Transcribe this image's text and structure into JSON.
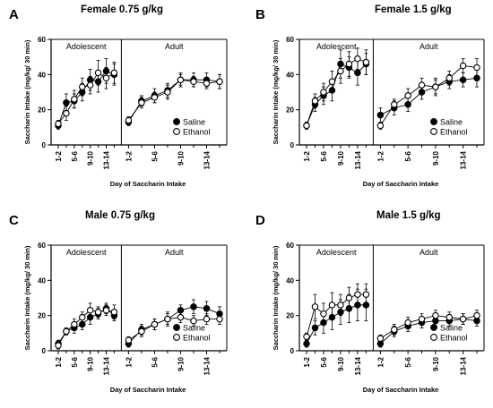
{
  "figure": {
    "xlabel": "Day of Saccharin Intake",
    "ylabel": "Saccharin Intake (mg/kg/ 30 min)",
    "phase_labels": [
      "Adolescent",
      "Adult"
    ],
    "x_tick_labels": [
      "1-2",
      "5-6",
      "9-10",
      "13-14"
    ],
    "y_tick_labels": [
      "0",
      "20",
      "40",
      "60"
    ]
  },
  "chart_data": [
    {
      "type": "line",
      "panel": "A",
      "title": "Female 0.75 g/kg",
      "xlabel": "Day of Saccharin Intake",
      "ylabel": "Saccharin Intake (mg/kg/ 30 min)",
      "ylim": [
        0,
        60
      ],
      "legend_position": "bottom-right",
      "phases": [
        "Adolescent",
        "Adult"
      ],
      "series": [
        {
          "name": "Saline",
          "marker": "filled",
          "adolescent": [
            11,
            24,
            25,
            30,
            37,
            36,
            42,
            40
          ],
          "adolescent_err": [
            2,
            5,
            4,
            5,
            6,
            6,
            7,
            6
          ],
          "adult": [
            13,
            25,
            28,
            31,
            37,
            37,
            37,
            36
          ],
          "adult_err": [
            2,
            3,
            4,
            4,
            4,
            4,
            4,
            4
          ]
        },
        {
          "name": "Ethanol",
          "marker": "open",
          "adolescent": [
            12,
            18,
            26,
            33,
            34,
            41,
            38,
            41
          ],
          "adolescent_err": [
            2,
            4,
            5,
            5,
            5,
            7,
            6,
            6
          ],
          "adult": [
            14,
            24,
            27,
            30,
            37,
            36,
            35,
            36
          ],
          "adult_err": [
            2,
            3,
            3,
            4,
            3,
            3,
            3,
            4
          ]
        }
      ]
    },
    {
      "type": "line",
      "panel": "B",
      "title": "Female 1.5 g/kg",
      "xlabel": "Day of Saccharin Intake",
      "ylabel": "Saccharin Intake (mg/kg/ 30 min)",
      "ylim": [
        0,
        60
      ],
      "legend_position": "bottom-right",
      "phases": [
        "Adolescent",
        "Adult"
      ],
      "series": [
        {
          "name": "Saline",
          "marker": "filled",
          "adolescent": [
            11,
            23,
            28,
            31,
            46,
            44,
            41,
            46
          ],
          "adolescent_err": [
            2,
            4,
            5,
            6,
            8,
            6,
            7,
            6
          ],
          "adult": [
            17,
            21,
            23,
            30,
            33,
            36,
            37,
            38
          ],
          "adult_err": [
            4,
            4,
            4,
            4,
            4,
            4,
            4,
            5
          ]
        },
        {
          "name": "Ethanol",
          "marker": "open",
          "adolescent": [
            11,
            25,
            30,
            36,
            42,
            46,
            49,
            47
          ],
          "adolescent_err": [
            2,
            4,
            5,
            6,
            7,
            7,
            6,
            7
          ],
          "adult": [
            11,
            23,
            28,
            34,
            33,
            38,
            45,
            44
          ],
          "adult_err": [
            2,
            3,
            4,
            4,
            5,
            4,
            4,
            5
          ]
        }
      ]
    },
    {
      "type": "line",
      "panel": "C",
      "title": "Male 0.75 g/kg",
      "xlabel": "Day of Saccharin Intake",
      "ylabel": "Saccharin Intake (mg/kg/ 30 min)",
      "ylim": [
        0,
        60
      ],
      "legend_position": "bottom-right",
      "phases": [
        "Adolescent",
        "Adult"
      ],
      "series": [
        {
          "name": "Saline",
          "marker": "filled",
          "adolescent": [
            4,
            11,
            13,
            15,
            19,
            21,
            24,
            20
          ],
          "adolescent_err": [
            2,
            2,
            3,
            3,
            4,
            3,
            3,
            3
          ],
          "adult": [
            4,
            12,
            15,
            18,
            23,
            25,
            24,
            21
          ],
          "adult_err": [
            2,
            3,
            3,
            4,
            3,
            4,
            4,
            4
          ]
        },
        {
          "name": "Ethanol",
          "marker": "open",
          "adolescent": [
            3,
            11,
            15,
            19,
            23,
            22,
            23,
            22
          ],
          "adolescent_err": [
            2,
            2,
            3,
            3,
            4,
            3,
            3,
            4
          ],
          "adult": [
            6,
            11,
            15,
            18,
            19,
            17,
            18,
            18
          ],
          "adult_err": [
            2,
            3,
            3,
            3,
            3,
            3,
            3,
            3
          ]
        }
      ]
    },
    {
      "type": "line",
      "panel": "D",
      "title": "Male 1.5 g/kg",
      "xlabel": "Day of Saccharin Intake",
      "ylabel": "Saccharin Intake (mg/kg/ 30 min)",
      "ylim": [
        0,
        60
      ],
      "legend_position": "bottom-right",
      "phases": [
        "Adolescent",
        "Adult"
      ],
      "series": [
        {
          "name": "Saline",
          "marker": "filled",
          "adolescent": [
            4,
            13,
            16,
            19,
            22,
            24,
            26,
            26
          ],
          "adolescent_err": [
            2,
            4,
            6,
            7,
            7,
            8,
            9,
            9
          ],
          "adult": [
            4,
            11,
            14,
            16,
            17,
            17,
            18,
            17
          ],
          "adult_err": [
            2,
            3,
            3,
            3,
            3,
            3,
            3,
            3
          ]
        },
        {
          "name": "Ethanol",
          "marker": "open",
          "adolescent": [
            8,
            25,
            21,
            26,
            26,
            30,
            32,
            32
          ],
          "adolescent_err": [
            2,
            7,
            6,
            7,
            6,
            6,
            6,
            6
          ],
          "adult": [
            7,
            12,
            16,
            18,
            20,
            19,
            18,
            20
          ],
          "adult_err": [
            2,
            3,
            3,
            3,
            3,
            3,
            3,
            3
          ]
        }
      ]
    }
  ]
}
